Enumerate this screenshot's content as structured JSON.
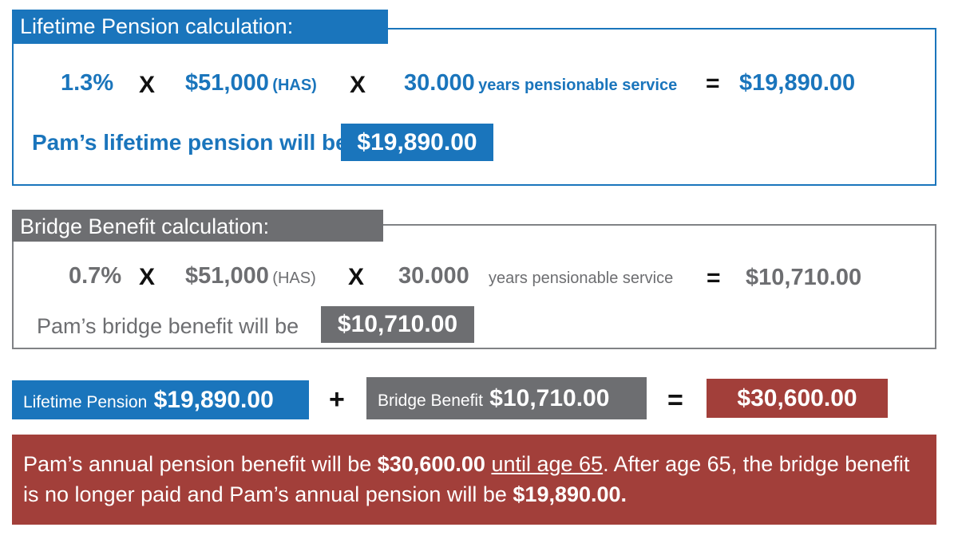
{
  "lifetime": {
    "header": "Lifetime Pension calculation:",
    "rate": "1.3%",
    "op1": "X",
    "has_value": "$51,000",
    "has_label": "(HAS)",
    "op2": "X",
    "service_value": "30.000",
    "service_label": "years pensionable service",
    "eq": "=",
    "result": "$19,890.00",
    "summary_text": "Pam’s lifetime pension will be",
    "summary_value": "$19,890.00"
  },
  "bridge": {
    "header": "Bridge Benefit calculation:",
    "rate": "0.7%",
    "op1": "X",
    "has_value": "$51,000",
    "has_label": "(HAS)",
    "op2": "X",
    "service_value": "30.000",
    "service_label": "years pensionable service",
    "eq": "=",
    "result": "$10,710.00",
    "summary_text": "Pam’s bridge benefit will be",
    "summary_value": "$10,710.00"
  },
  "sum": {
    "lifetime_label": "Lifetime Pension",
    "lifetime_value": "$19,890.00",
    "plus": "+",
    "bridge_label": "Bridge Benefit",
    "bridge_value": "$10,710.00",
    "eq": "=",
    "total": "$30,600.00"
  },
  "note": {
    "t1": "Pam’s annual pension benefit will be ",
    "b1": "$30,600.00",
    "t2": " ",
    "u1": "until age 65",
    "t3": ". After age 65, the bridge benefit is no longer paid and Pam’s annual pension will be ",
    "b2": "$19,890.00."
  },
  "colors": {
    "blue": "#1a75bc",
    "gray": "#6d6e71",
    "red": "#a23f3a"
  }
}
